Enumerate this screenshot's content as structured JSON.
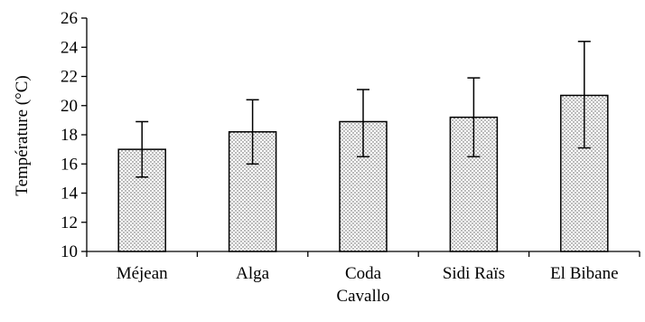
{
  "chart_data": {
    "type": "bar",
    "title": "",
    "xlabel": "",
    "ylabel": "Température (°C)",
    "ylim": [
      10,
      26
    ],
    "ytick_step": 2,
    "grid": false,
    "legend": "none",
    "bar_fill": "dotted",
    "categories": [
      "Méjean",
      "Alga",
      "Coda\nCavallo",
      "Sidi Raïs",
      "El Bibane"
    ],
    "values": [
      17.0,
      18.2,
      18.9,
      19.2,
      20.7
    ],
    "error_high": [
      18.9,
      20.4,
      21.1,
      21.9,
      24.4
    ],
    "error_low": [
      15.1,
      16.0,
      16.5,
      16.5,
      17.1
    ]
  }
}
